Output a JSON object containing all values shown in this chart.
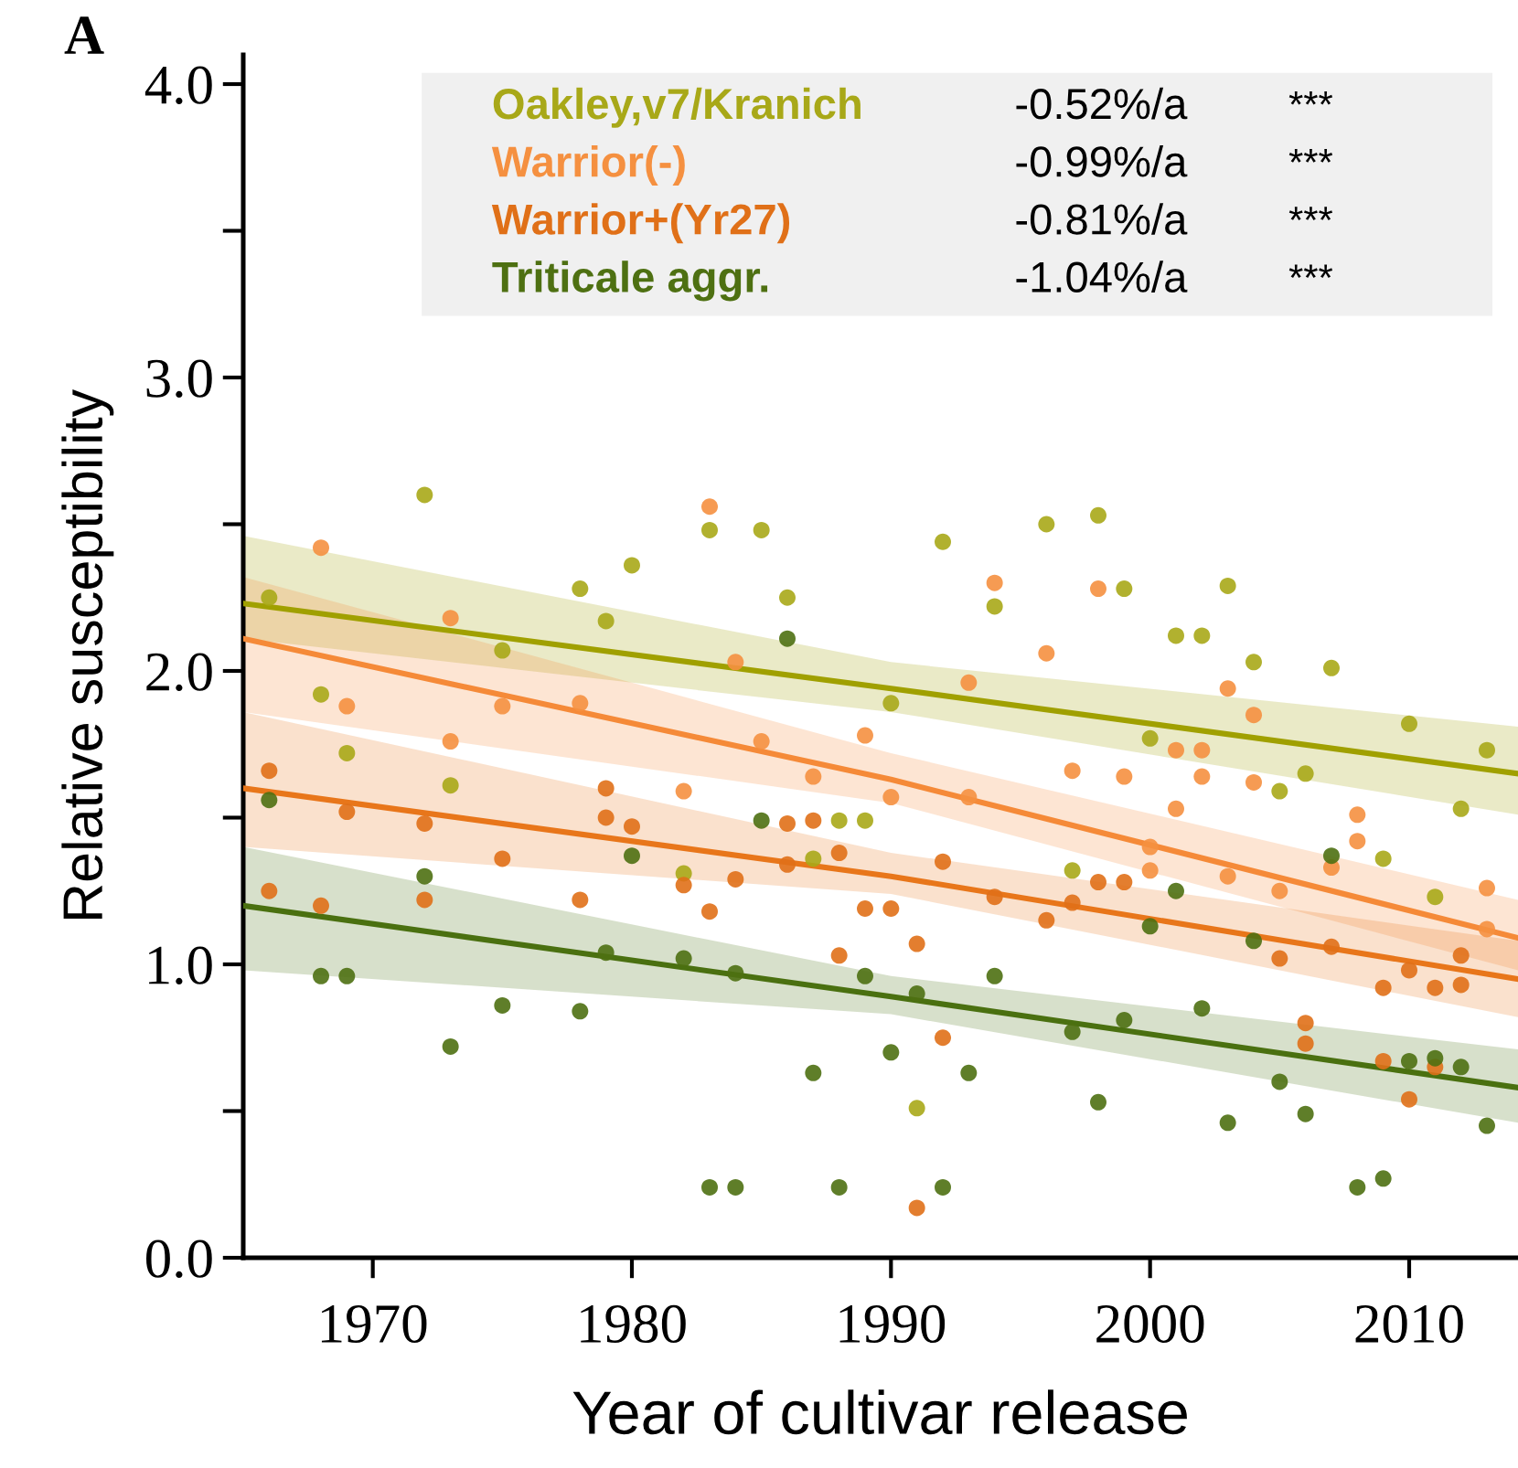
{
  "chart_data": {
    "type": "scatter",
    "xlabel": "Year of cultivar release",
    "ylabel": "Relative susceptibility",
    "xlim": [
      1965,
      2014.2
    ],
    "xticks": [
      1970,
      1980,
      1990,
      2000,
      2010
    ],
    "ylim": [
      0,
      4.1
    ],
    "yticks": [
      {
        "value": 0,
        "label": "0.0"
      },
      {
        "value": 0.5,
        "label": null
      },
      {
        "value": 1,
        "label": "1.0"
      },
      {
        "value": 1.5,
        "label": null
      },
      {
        "value": 2,
        "label": "2.0"
      },
      {
        "value": 2.5,
        "label": null
      },
      {
        "value": 3,
        "label": "3.0"
      },
      {
        "value": 3.5,
        "label": null
      },
      {
        "value": 4,
        "label": "4.0"
      }
    ],
    "grid": false,
    "legend": "top",
    "annotations": [
      "A",
      "-0.52%/a",
      "***",
      "-0.99%/a",
      "***",
      "-0.81%/a",
      "***",
      "-1.04%/a",
      "***"
    ],
    "series": [
      {
        "marker": "circle",
        "name": "Oakley,v7/Kranich",
        "color": "#a8a818",
        "x": [
          1972,
          1966,
          1975,
          1978,
          1980,
          1979,
          1968,
          1969,
          1973,
          1983,
          1985,
          1986,
          1992,
          1996,
          1998,
          1994,
          1990,
          1988,
          1989,
          1987,
          1982,
          1997,
          1991,
          1999,
          2001,
          2002,
          2003,
          2004,
          2007,
          2000,
          2006,
          2005,
          2010,
          2013,
          2012,
          2009,
          2011
        ],
        "values": [
          2.6,
          2.25,
          2.07,
          2.28,
          2.36,
          2.17,
          1.92,
          1.72,
          1.61,
          2.48,
          2.48,
          2.25,
          2.44,
          2.5,
          2.53,
          2.22,
          1.89,
          1.49,
          1.49,
          1.36,
          1.31,
          1.32,
          0.51,
          2.28,
          2.12,
          2.12,
          2.29,
          2.03,
          2.01,
          1.77,
          1.65,
          1.59,
          1.82,
          1.73,
          1.53,
          1.36,
          1.23
        ]
      },
      {
        "marker": "circle",
        "name": "Warrior(-)",
        "color": "#f59040",
        "x": [
          1968,
          1973,
          1969,
          1975,
          1978,
          1973,
          1983,
          1984,
          1994,
          1998,
          1996,
          1993,
          1989,
          1985,
          1982,
          1987,
          1990,
          1993,
          1997,
          2003,
          2004,
          2001,
          2002,
          1999,
          2002,
          2004,
          2001,
          2008,
          2008,
          2007,
          2000,
          2000,
          2003,
          2005,
          2013,
          2013
        ],
        "values": [
          2.42,
          2.18,
          1.88,
          1.88,
          1.89,
          1.76,
          2.56,
          2.03,
          2.3,
          2.28,
          2.06,
          1.96,
          1.78,
          1.76,
          1.59,
          1.64,
          1.57,
          1.57,
          1.66,
          1.94,
          1.85,
          1.73,
          1.73,
          1.64,
          1.64,
          1.62,
          1.53,
          1.51,
          1.42,
          1.33,
          1.4,
          1.32,
          1.3,
          1.25,
          1.26,
          1.12
        ]
      },
      {
        "marker": "circle",
        "name": "Warrior+(Yr27)",
        "color": "#e07018",
        "x": [
          1966,
          1969,
          1972,
          1979,
          1979,
          1980,
          1975,
          1966,
          1968,
          1972,
          1978,
          1986,
          1987,
          1988,
          1986,
          1982,
          1984,
          1992,
          1994,
          1996,
          1997,
          1983,
          1989,
          1990,
          1991,
          1988,
          1992,
          1991,
          1998,
          1999,
          2005,
          2007,
          2010,
          2009,
          2011,
          2012,
          2012,
          2006,
          2006,
          2009,
          2011,
          2010
        ],
        "values": [
          1.66,
          1.52,
          1.48,
          1.6,
          1.5,
          1.47,
          1.36,
          1.25,
          1.2,
          1.22,
          1.22,
          1.48,
          1.49,
          1.38,
          1.34,
          1.27,
          1.29,
          1.35,
          1.23,
          1.15,
          1.21,
          1.18,
          1.19,
          1.19,
          1.07,
          1.03,
          0.75,
          0.17,
          1.28,
          1.28,
          1.02,
          1.06,
          0.98,
          0.92,
          0.92,
          1.03,
          0.93,
          0.8,
          0.73,
          0.67,
          0.65,
          0.54
        ]
      },
      {
        "marker": "circle",
        "name": "Triticale aggr.",
        "color": "#4e7012",
        "x": [
          1966,
          1986,
          1980,
          1972,
          1968,
          1969,
          1975,
          1978,
          1973,
          1979,
          1985,
          1982,
          1984,
          1989,
          1991,
          1994,
          1997,
          1990,
          1987,
          1993,
          1998,
          1983,
          1984,
          1988,
          1992,
          2007,
          2001,
          2000,
          2004,
          2002,
          1999,
          2005,
          2003,
          2006,
          2010,
          2011,
          2012,
          2013,
          2008,
          2009
        ],
        "values": [
          1.56,
          2.11,
          1.37,
          1.3,
          0.96,
          0.96,
          0.86,
          0.84,
          0.72,
          1.04,
          1.49,
          1.02,
          0.97,
          0.96,
          0.9,
          0.96,
          0.77,
          0.7,
          0.63,
          0.63,
          0.53,
          0.24,
          0.24,
          0.24,
          0.24,
          1.37,
          1.25,
          1.13,
          1.08,
          0.85,
          0.81,
          0.6,
          0.46,
          0.49,
          0.67,
          0.68,
          0.65,
          0.45,
          0.24,
          0.27
        ]
      },
      {
        "type": "line",
        "color": "#a0a000",
        "x": [
          1965,
          1990,
          2014.2
        ],
        "values": [
          2.23,
          1.94,
          1.65
        ],
        "lower": [
          2.11,
          1.86,
          1.51
        ],
        "upper": [
          2.46,
          2.03,
          1.81
        ]
      },
      {
        "type": "line",
        "color": "#f58a38",
        "x": [
          1965,
          1990,
          2014.2
        ],
        "values": [
          2.11,
          1.63,
          1.09
        ],
        "lower": [
          1.86,
          1.55,
          0.98
        ],
        "upper": [
          2.32,
          1.72,
          1.22
        ]
      },
      {
        "type": "line",
        "color": "#e8761a",
        "x": [
          1965,
          1990,
          2014.2
        ],
        "values": [
          1.6,
          1.3,
          0.95
        ],
        "lower": [
          1.4,
          1.24,
          0.82
        ],
        "upper": [
          1.86,
          1.38,
          1.08
        ]
      },
      {
        "type": "line",
        "color": "#4a7010",
        "x": [
          1965,
          1990,
          2014.2
        ],
        "values": [
          1.2,
          0.89,
          0.58
        ],
        "lower": [
          0.98,
          0.83,
          0.46
        ],
        "upper": [
          1.4,
          0.96,
          0.71
        ]
      }
    ]
  }
}
